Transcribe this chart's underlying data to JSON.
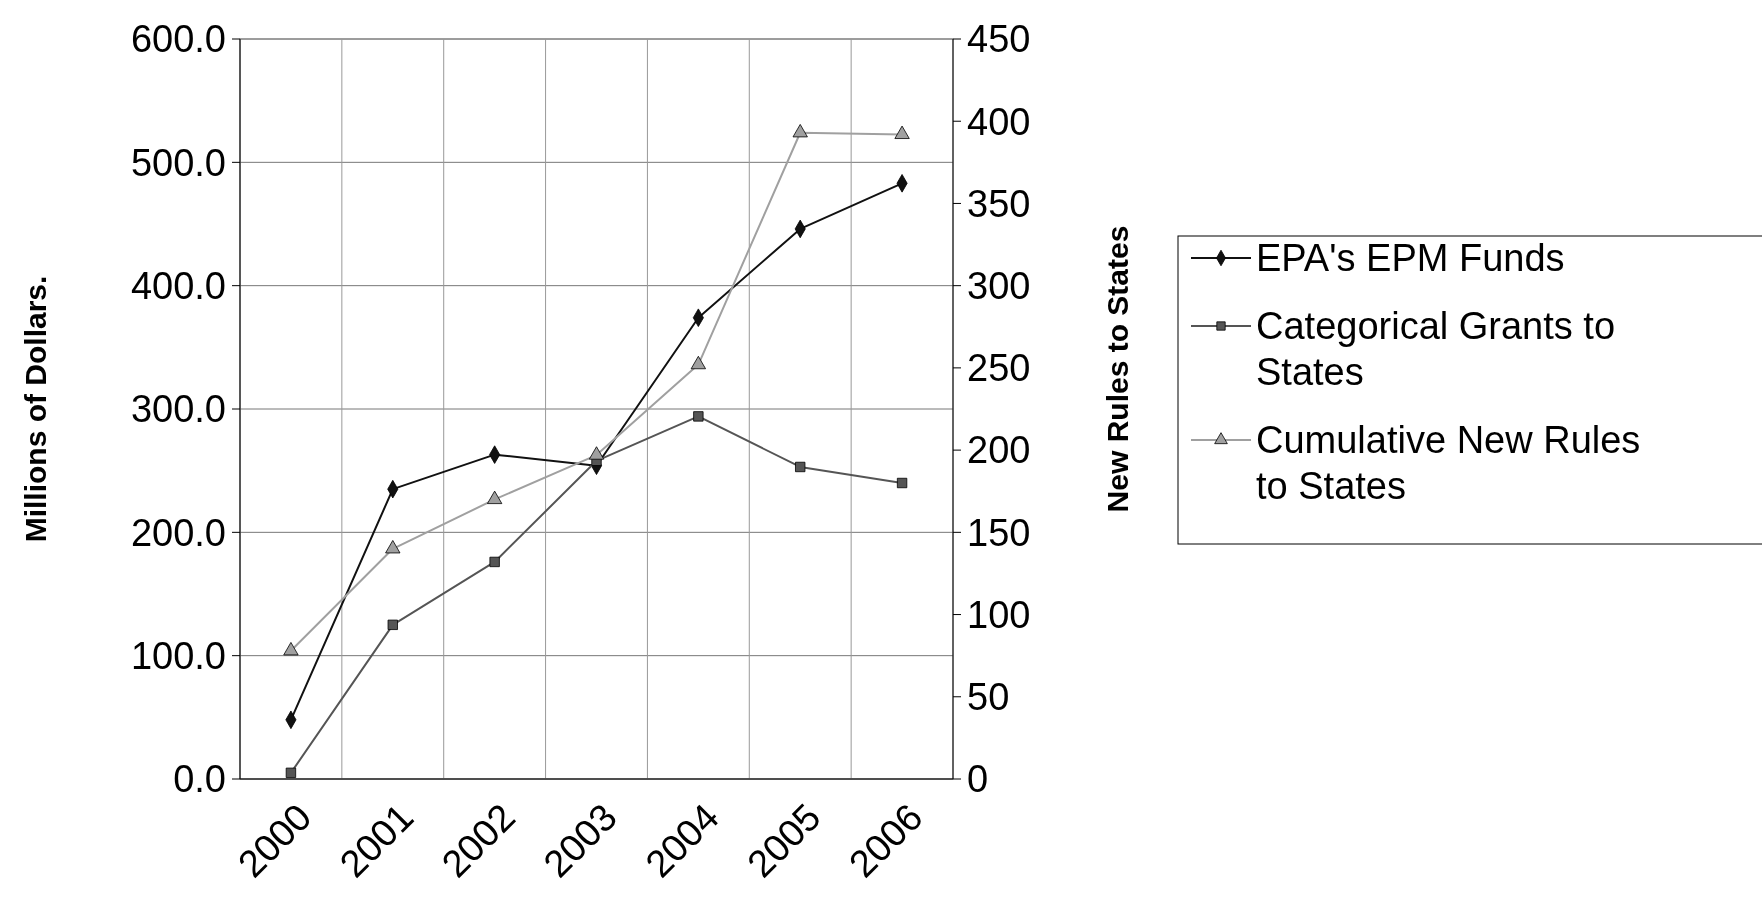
{
  "chart_data": {
    "type": "line",
    "ylabel": "Millions of Dollars.",
    "y2label": "New Rules to States",
    "categories": [
      "2000",
      "2001",
      "2002",
      "2003",
      "2004",
      "2005",
      "2006"
    ],
    "series": [
      {
        "name": "EPA's EPM Funds",
        "color": "#111111",
        "marker": "diamond",
        "values": [
          48,
          235,
          263,
          254,
          374,
          446,
          483
        ]
      },
      {
        "name": "Categorical Grants to States",
        "color": "#555555",
        "marker": "square",
        "values": [
          5,
          125,
          176,
          258,
          294,
          253,
          240
        ]
      },
      {
        "name": "Cumulative New Rules to States",
        "color": "#a0a0a0",
        "marker": "triangle",
        "axis": "y2",
        "values": [
          78,
          140,
          170,
          197,
          252,
          393,
          392
        ]
      }
    ],
    "ylim": [
      0,
      600
    ],
    "yticks": [
      {
        "value": 0,
        "label": "0.0"
      },
      {
        "value": 100,
        "label": "100.0"
      },
      {
        "value": 200,
        "label": "200.0"
      },
      {
        "value": 300,
        "label": "300.0"
      },
      {
        "value": 400,
        "label": "400.0"
      },
      {
        "value": 500,
        "label": "500.0"
      },
      {
        "value": 600,
        "label": "600.0"
      }
    ],
    "y2lim": [
      0,
      450
    ],
    "y2ticks": [
      0,
      50,
      100,
      150,
      200,
      250,
      300,
      350,
      400,
      450
    ],
    "grid": true,
    "legend": "right",
    "line_style": "solid"
  }
}
